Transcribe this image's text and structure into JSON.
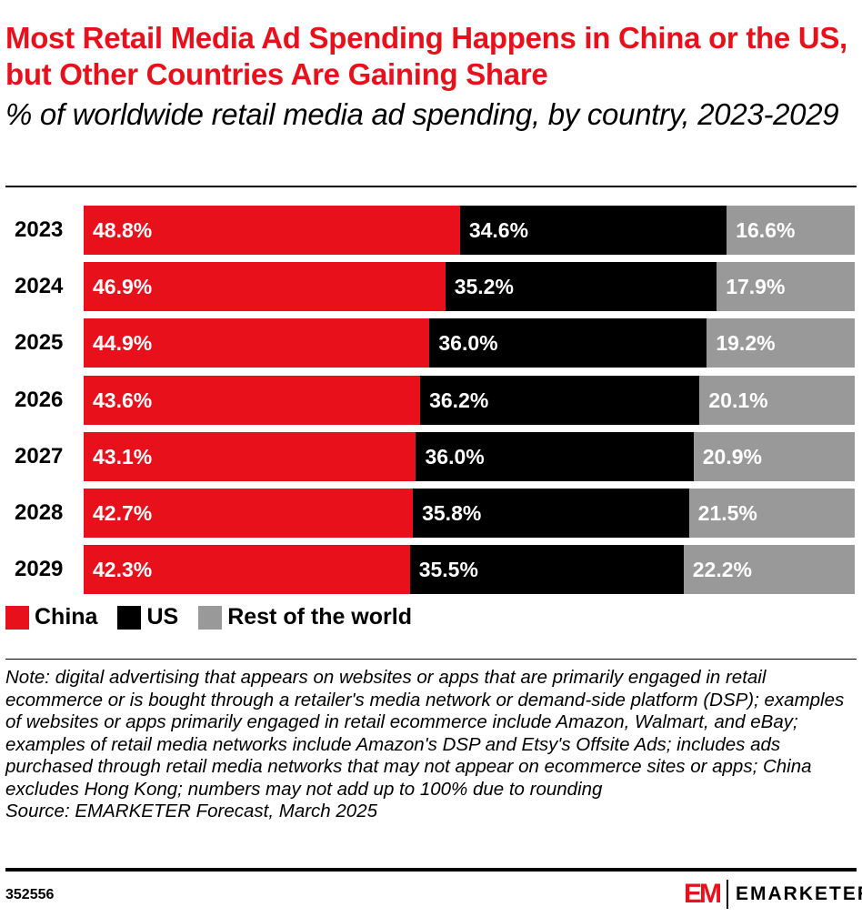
{
  "title": "Most Retail Media Ad Spending Happens in China or the US, but Other Countries Are Gaining Share",
  "subtitle": "% of worldwide retail media ad spending, by country, 2023-2029",
  "chart_data": {
    "type": "bar",
    "orientation": "horizontal",
    "stacked": true,
    "categories": [
      "2023",
      "2024",
      "2025",
      "2026",
      "2027",
      "2028",
      "2029"
    ],
    "series": [
      {
        "name": "China",
        "color": "#e8101b",
        "values": [
          48.8,
          46.9,
          44.9,
          43.6,
          43.1,
          42.7,
          42.3
        ]
      },
      {
        "name": "US",
        "color": "#000000",
        "values": [
          34.6,
          35.2,
          36.0,
          36.2,
          36.0,
          35.8,
          35.5
        ]
      },
      {
        "name": "Rest of the world",
        "color": "#999999",
        "values": [
          16.6,
          17.9,
          19.2,
          20.1,
          20.9,
          21.5,
          22.2
        ]
      }
    ],
    "data_labels": [
      [
        "48.8%",
        "34.6%",
        "16.6%"
      ],
      [
        "46.9%",
        "35.2%",
        "17.9%"
      ],
      [
        "44.9%",
        "36.0%",
        "19.2%"
      ],
      [
        "43.6%",
        "36.2%",
        "20.1%"
      ],
      [
        "43.1%",
        "36.0%",
        "20.9%"
      ],
      [
        "42.7%",
        "35.8%",
        "21.5%"
      ],
      [
        "42.3%",
        "35.5%",
        "22.2%"
      ]
    ],
    "legend": "bottom-left",
    "grid": false
  },
  "note": "Note: digital advertising that appears on websites or apps that are primarily engaged in retail ecommerce or is bought through a retailer's media network or demand-side platform (DSP); examples of websites or apps primarily engaged in retail ecommerce include Amazon, Walmart, and eBay; examples of retail media networks include Amazon's DSP and Etsy's Offsite Ads; includes ads purchased through retail media networks that may not appear on ecommerce sites or apps; China excludes Hong Kong; numbers may not add up to 100% due to rounding",
  "source": "Source: EMARKETER Forecast, March 2025",
  "chart_id": "352556",
  "brand": {
    "mark": "EM",
    "name": "EMARKETER"
  }
}
